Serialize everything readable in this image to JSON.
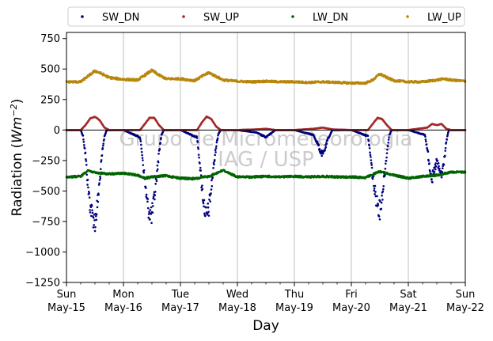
{
  "chart_data": {
    "type": "scatter",
    "title": "",
    "xlabel": "Day",
    "ylabel_prefix": "Radiation (",
    "ylabel_unit_base": "Wm",
    "ylabel_unit_exp": "−2",
    "ylabel_suffix": ")",
    "ylim": [
      -1250,
      800
    ],
    "yticks": [
      {
        "value": 750,
        "label": "750"
      },
      {
        "value": 500,
        "label": "500"
      },
      {
        "value": 250,
        "label": "250"
      },
      {
        "value": 0,
        "label": "0"
      },
      {
        "value": -250,
        "label": "−250"
      },
      {
        "value": -500,
        "label": "−500"
      },
      {
        "value": -750,
        "label": "−750"
      },
      {
        "value": -1000,
        "label": "−1000"
      },
      {
        "value": -1250,
        "label": "−1250"
      }
    ],
    "xlim": [
      "2022-05-15",
      "2022-05-22"
    ],
    "xticks": [
      {
        "value": "2022-05-15",
        "day": "Sun",
        "date": "May-15"
      },
      {
        "value": "2022-05-16",
        "day": "Mon",
        "date": "May-16"
      },
      {
        "value": "2022-05-17",
        "day": "Tue",
        "date": "May-17"
      },
      {
        "value": "2022-05-18",
        "day": "Wed",
        "date": "May-18"
      },
      {
        "value": "2022-05-19",
        "day": "Thu",
        "date": "May-19"
      },
      {
        "value": "2022-05-20",
        "day": "Fri",
        "date": "May-20"
      },
      {
        "value": "2022-05-21",
        "day": "Sat",
        "date": "May-21"
      },
      {
        "value": "2022-05-22",
        "day": "Sun",
        "date": "May-22"
      }
    ],
    "grid": "vertical",
    "legend_position": "top",
    "watermark": [
      "Grupo de Micrometeorologia",
      "IAG / USP"
    ],
    "series": [
      {
        "name": "SW_DN",
        "color": "#00007f",
        "points": [
          [
            "2022-05-15 00:00",
            0
          ],
          [
            "2022-05-15 06:00",
            0
          ],
          [
            "2022-05-15 07:00",
            -50
          ],
          [
            "2022-05-15 08:00",
            -200
          ],
          [
            "2022-05-15 09:00",
            -450
          ],
          [
            "2022-05-15 10:00",
            -620
          ],
          [
            "2022-05-15 11:00",
            -700
          ],
          [
            "2022-05-15 12:00",
            -760
          ],
          [
            "2022-05-15 13:00",
            -620
          ],
          [
            "2022-05-15 14:00",
            -420
          ],
          [
            "2022-05-15 15:00",
            -200
          ],
          [
            "2022-05-15 16:00",
            -50
          ],
          [
            "2022-05-15 17:00",
            0
          ],
          [
            "2022-05-16 00:00",
            0
          ],
          [
            "2022-05-16 07:00",
            -60
          ],
          [
            "2022-05-16 08:00",
            -220
          ],
          [
            "2022-05-16 09:00",
            -420
          ],
          [
            "2022-05-16 10:00",
            -600
          ],
          [
            "2022-05-16 11:00",
            -680
          ],
          [
            "2022-05-16 12:00",
            -700
          ],
          [
            "2022-05-16 13:00",
            -560
          ],
          [
            "2022-05-16 14:00",
            -380
          ],
          [
            "2022-05-16 15:00",
            -180
          ],
          [
            "2022-05-16 16:00",
            -40
          ],
          [
            "2022-05-16 17:00",
            0
          ],
          [
            "2022-05-17 00:00",
            0
          ],
          [
            "2022-05-17 07:00",
            -60
          ],
          [
            "2022-05-17 08:00",
            -240
          ],
          [
            "2022-05-17 09:00",
            -460
          ],
          [
            "2022-05-17 10:00",
            -620
          ],
          [
            "2022-05-17 11:00",
            -720
          ],
          [
            "2022-05-17 12:00",
            -640
          ],
          [
            "2022-05-17 13:00",
            -480
          ],
          [
            "2022-05-17 14:00",
            -300
          ],
          [
            "2022-05-17 15:00",
            -140
          ],
          [
            "2022-05-17 16:00",
            -30
          ],
          [
            "2022-05-17 17:00",
            0
          ],
          [
            "2022-05-18 00:00",
            0
          ],
          [
            "2022-05-18 08:00",
            -20
          ],
          [
            "2022-05-18 10:00",
            -40
          ],
          [
            "2022-05-18 12:00",
            -60
          ],
          [
            "2022-05-18 14:00",
            -30
          ],
          [
            "2022-05-18 16:00",
            0
          ],
          [
            "2022-05-19 00:00",
            0
          ],
          [
            "2022-05-19 08:00",
            -40
          ],
          [
            "2022-05-19 10:00",
            -120
          ],
          [
            "2022-05-19 11:00",
            -180
          ],
          [
            "2022-05-19 12:00",
            -200
          ],
          [
            "2022-05-19 13:00",
            -150
          ],
          [
            "2022-05-19 14:00",
            -80
          ],
          [
            "2022-05-19 16:00",
            0
          ],
          [
            "2022-05-20 00:00",
            0
          ],
          [
            "2022-05-20 07:00",
            -50
          ],
          [
            "2022-05-20 08:00",
            -200
          ],
          [
            "2022-05-20 09:00",
            -380
          ],
          [
            "2022-05-20 10:00",
            -520
          ],
          [
            "2022-05-20 11:00",
            -600
          ],
          [
            "2022-05-20 12:00",
            -660
          ],
          [
            "2022-05-20 13:00",
            -540
          ],
          [
            "2022-05-20 14:00",
            -360
          ],
          [
            "2022-05-20 15:00",
            -180
          ],
          [
            "2022-05-20 16:00",
            -40
          ],
          [
            "2022-05-20 17:00",
            0
          ],
          [
            "2022-05-21 00:00",
            0
          ],
          [
            "2022-05-21 07:00",
            -40
          ],
          [
            "2022-05-21 08:00",
            -160
          ],
          [
            "2022-05-21 09:00",
            -300
          ],
          [
            "2022-05-21 10:00",
            -400
          ],
          [
            "2022-05-21 11:00",
            -340
          ],
          [
            "2022-05-21 12:00",
            -250
          ],
          [
            "2022-05-21 13:00",
            -330
          ],
          [
            "2022-05-21 14:00",
            -380
          ],
          [
            "2022-05-21 15:00",
            -260
          ],
          [
            "2022-05-21 16:00",
            -100
          ],
          [
            "2022-05-21 17:00",
            0
          ],
          [
            "2022-05-22 00:00",
            0
          ]
        ]
      },
      {
        "name": "SW_UP",
        "color": "#a52a2a",
        "points": [
          [
            "2022-05-15 00:00",
            0
          ],
          [
            "2022-05-15 06:00",
            0
          ],
          [
            "2022-05-15 08:00",
            40
          ],
          [
            "2022-05-15 10:00",
            95
          ],
          [
            "2022-05-15 12:00",
            110
          ],
          [
            "2022-05-15 14:00",
            80
          ],
          [
            "2022-05-15 16:00",
            20
          ],
          [
            "2022-05-15 18:00",
            0
          ],
          [
            "2022-05-16 00:00",
            0
          ],
          [
            "2022-05-16 07:00",
            0
          ],
          [
            "2022-05-16 09:00",
            50
          ],
          [
            "2022-05-16 11:00",
            100
          ],
          [
            "2022-05-16 13:00",
            100
          ],
          [
            "2022-05-16 15:00",
            40
          ],
          [
            "2022-05-16 17:00",
            0
          ],
          [
            "2022-05-17 00:00",
            0
          ],
          [
            "2022-05-17 07:00",
            0
          ],
          [
            "2022-05-17 09:00",
            60
          ],
          [
            "2022-05-17 11:00",
            110
          ],
          [
            "2022-05-17 13:00",
            90
          ],
          [
            "2022-05-17 15:00",
            30
          ],
          [
            "2022-05-17 17:00",
            0
          ],
          [
            "2022-05-18 00:00",
            0
          ],
          [
            "2022-05-18 08:00",
            5
          ],
          [
            "2022-05-18 12:00",
            10
          ],
          [
            "2022-05-18 16:00",
            0
          ],
          [
            "2022-05-19 00:00",
            0
          ],
          [
            "2022-05-19 08:00",
            10
          ],
          [
            "2022-05-19 12:00",
            20
          ],
          [
            "2022-05-19 16:00",
            5
          ],
          [
            "2022-05-20 00:00",
            0
          ],
          [
            "2022-05-20 07:00",
            0
          ],
          [
            "2022-05-20 09:00",
            50
          ],
          [
            "2022-05-20 11:00",
            100
          ],
          [
            "2022-05-20 13:00",
            90
          ],
          [
            "2022-05-20 15:00",
            40
          ],
          [
            "2022-05-20 17:00",
            0
          ],
          [
            "2022-05-21 00:00",
            0
          ],
          [
            "2022-05-21 08:00",
            20
          ],
          [
            "2022-05-21 10:00",
            50
          ],
          [
            "2022-05-21 12:00",
            40
          ],
          [
            "2022-05-21 14:00",
            50
          ],
          [
            "2022-05-21 16:00",
            10
          ],
          [
            "2022-05-21 18:00",
            0
          ],
          [
            "2022-05-22 00:00",
            0
          ]
        ]
      },
      {
        "name": "LW_DN",
        "color": "#006400",
        "points": [
          [
            "2022-05-15 00:00",
            -385
          ],
          [
            "2022-05-15 06:00",
            -380
          ],
          [
            "2022-05-15 09:00",
            -330
          ],
          [
            "2022-05-15 12:00",
            -350
          ],
          [
            "2022-05-15 18:00",
            -360
          ],
          [
            "2022-05-16 00:00",
            -355
          ],
          [
            "2022-05-16 06:00",
            -370
          ],
          [
            "2022-05-16 09:00",
            -395
          ],
          [
            "2022-05-16 12:00",
            -385
          ],
          [
            "2022-05-16 18:00",
            -375
          ],
          [
            "2022-05-17 00:00",
            -395
          ],
          [
            "2022-05-17 06:00",
            -400
          ],
          [
            "2022-05-17 12:00",
            -380
          ],
          [
            "2022-05-17 18:00",
            -330
          ],
          [
            "2022-05-18 00:00",
            -385
          ],
          [
            "2022-05-18 06:00",
            -385
          ],
          [
            "2022-05-18 12:00",
            -380
          ],
          [
            "2022-05-18 18:00",
            -385
          ],
          [
            "2022-05-19 00:00",
            -380
          ],
          [
            "2022-05-19 06:00",
            -385
          ],
          [
            "2022-05-19 12:00",
            -380
          ],
          [
            "2022-05-19 18:00",
            -385
          ],
          [
            "2022-05-20 00:00",
            -385
          ],
          [
            "2022-05-20 06:00",
            -390
          ],
          [
            "2022-05-20 12:00",
            -340
          ],
          [
            "2022-05-20 18:00",
            -370
          ],
          [
            "2022-05-21 00:00",
            -395
          ],
          [
            "2022-05-21 06:00",
            -380
          ],
          [
            "2022-05-21 12:00",
            -370
          ],
          [
            "2022-05-21 18:00",
            -345
          ],
          [
            "2022-05-22 00:00",
            -345
          ]
        ]
      },
      {
        "name": "LW_UP",
        "color": "#b8860b",
        "points": [
          [
            "2022-05-15 00:00",
            395
          ],
          [
            "2022-05-15 06:00",
            395
          ],
          [
            "2022-05-15 09:00",
            440
          ],
          [
            "2022-05-15 12:00",
            485
          ],
          [
            "2022-05-15 15:00",
            460
          ],
          [
            "2022-05-15 18:00",
            430
          ],
          [
            "2022-05-16 00:00",
            415
          ],
          [
            "2022-05-16 06:00",
            410
          ],
          [
            "2022-05-16 09:00",
            450
          ],
          [
            "2022-05-16 12:00",
            490
          ],
          [
            "2022-05-16 15:00",
            450
          ],
          [
            "2022-05-16 18:00",
            420
          ],
          [
            "2022-05-17 00:00",
            420
          ],
          [
            "2022-05-17 06:00",
            405
          ],
          [
            "2022-05-17 09:00",
            440
          ],
          [
            "2022-05-17 12:00",
            470
          ],
          [
            "2022-05-17 15:00",
            440
          ],
          [
            "2022-05-17 18:00",
            410
          ],
          [
            "2022-05-18 00:00",
            400
          ],
          [
            "2022-05-18 06:00",
            395
          ],
          [
            "2022-05-18 12:00",
            400
          ],
          [
            "2022-05-18 18:00",
            395
          ],
          [
            "2022-05-19 00:00",
            395
          ],
          [
            "2022-05-19 06:00",
            390
          ],
          [
            "2022-05-19 12:00",
            395
          ],
          [
            "2022-05-19 18:00",
            390
          ],
          [
            "2022-05-20 00:00",
            385
          ],
          [
            "2022-05-20 06:00",
            385
          ],
          [
            "2022-05-20 09:00",
            410
          ],
          [
            "2022-05-20 12:00",
            460
          ],
          [
            "2022-05-20 15:00",
            430
          ],
          [
            "2022-05-20 18:00",
            405
          ],
          [
            "2022-05-21 00:00",
            395
          ],
          [
            "2022-05-21 06:00",
            395
          ],
          [
            "2022-05-21 12:00",
            410
          ],
          [
            "2022-05-21 15:00",
            420
          ],
          [
            "2022-05-21 18:00",
            410
          ],
          [
            "2022-05-22 00:00",
            400
          ]
        ]
      }
    ]
  }
}
